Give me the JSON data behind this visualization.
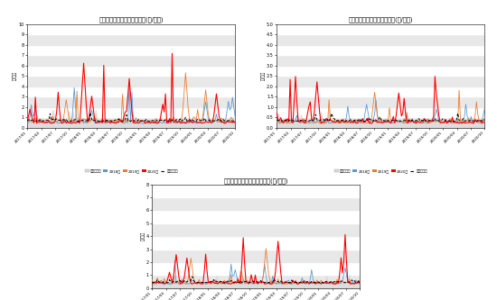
{
  "titles": [
    "郑州农产品批发市场红枣价格(元/千克)",
    "岳阳农产品批发市场红枣价格(元/千克)",
    "昆明农产品批发市场红枣价格(元/千克)"
  ],
  "ylabel": "元/千克",
  "ylim1": [
    0,
    10
  ],
  "ylim2": [
    0,
    5
  ],
  "ylim3": [
    0,
    8
  ],
  "yticks1": [
    0,
    1,
    2,
    3,
    4,
    5,
    6,
    7,
    8,
    9,
    10
  ],
  "yticks2": [
    0,
    0.5,
    1.0,
    1.5,
    2.0,
    2.5,
    3.0,
    3.5,
    4.0,
    4.5,
    5.0
  ],
  "yticks3": [
    0,
    1,
    2,
    3,
    4,
    5,
    6,
    7,
    8
  ],
  "line_colors_18": "#5B9BD5",
  "line_colors_19": "#ED7D31",
  "line_colors_20": "#FF0000",
  "line_colors_avg": "#000000",
  "fill_color": "#DCDCDC",
  "legend_labels": [
    "近五年均价",
    "2018年",
    "2019年",
    "2020年",
    "近五年均价"
  ],
  "legend_patch_colors": [
    "#D9D9D9",
    "#5B9BD5",
    "#ED7D31",
    "#FF0000"
  ],
  "n_points": 156,
  "background_color": "#ffffff",
  "band_color": "#E8E8E8",
  "xtick_labels": [
    "2017/01",
    "2017/04",
    "2017/07",
    "2017/10",
    "2018/01",
    "2018/04",
    "2018/07",
    "2018/10",
    "2019/01",
    "2019/04",
    "2019/07",
    "2019/10",
    "2020/01",
    "2020/04",
    "2020/07",
    "2020/10"
  ]
}
